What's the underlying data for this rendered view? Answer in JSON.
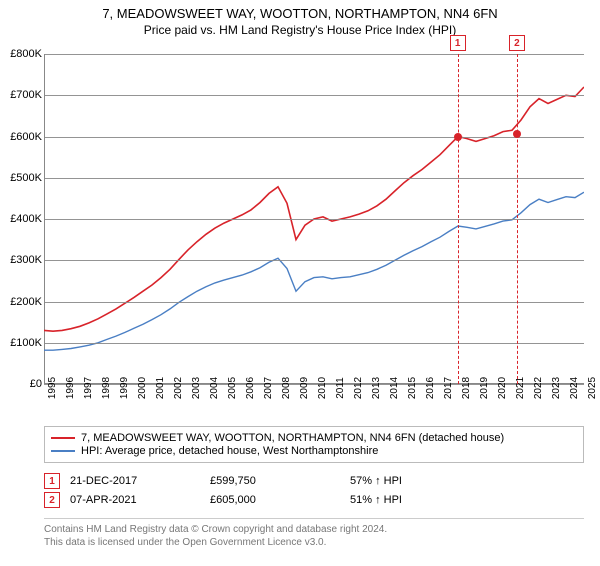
{
  "title": "7, MEADOWSWEET WAY, WOOTTON, NORTHAMPTON, NN4 6FN",
  "subtitle": "Price paid vs. HM Land Registry's House Price Index (HPI)",
  "chart": {
    "type": "line",
    "ylabel_format": "£{v}K",
    "ylim": [
      0,
      800000
    ],
    "ytick_step": 100000,
    "yticks": [
      "£0",
      "£100K",
      "£200K",
      "£300K",
      "£400K",
      "£500K",
      "£600K",
      "£700K",
      "£800K"
    ],
    "xlim": [
      1995,
      2025
    ],
    "xticks": [
      1995,
      1996,
      1997,
      1998,
      1999,
      2000,
      2001,
      2002,
      2003,
      2004,
      2005,
      2006,
      2007,
      2008,
      2009,
      2010,
      2011,
      2012,
      2013,
      2014,
      2015,
      2016,
      2017,
      2018,
      2019,
      2020,
      2021,
      2022,
      2023,
      2024,
      2025
    ],
    "grid_color": "#888888",
    "background_color": "#ffffff",
    "series": [
      {
        "name": "price_paid",
        "label": "7, MEADOWSWEET WAY, WOOTTON, NORTHAMPTON, NN4 6FN (detached house)",
        "color": "#d8232a",
        "line_width": 1.6,
        "x": [
          1995,
          1995.5,
          1996,
          1996.5,
          1997,
          1997.5,
          1998,
          1998.5,
          1999,
          1999.5,
          2000,
          2000.5,
          2001,
          2001.5,
          2002,
          2002.5,
          2003,
          2003.5,
          2004,
          2004.5,
          2005,
          2005.5,
          2006,
          2006.5,
          2007,
          2007.5,
          2008,
          2008.5,
          2009,
          2009.5,
          2010,
          2010.5,
          2011,
          2011.5,
          2012,
          2012.5,
          2013,
          2013.5,
          2014,
          2014.5,
          2015,
          2015.5,
          2016,
          2016.5,
          2017,
          2017.5,
          2018,
          2018.5,
          2019,
          2019.5,
          2020,
          2020.5,
          2021,
          2021.5,
          2022,
          2022.5,
          2023,
          2023.5,
          2024,
          2024.5,
          2025
        ],
        "y": [
          130000,
          128000,
          130000,
          134000,
          140000,
          148000,
          158000,
          170000,
          182000,
          196000,
          210000,
          225000,
          240000,
          258000,
          278000,
          302000,
          325000,
          345000,
          363000,
          378000,
          390000,
          400000,
          410000,
          422000,
          440000,
          462000,
          478000,
          438000,
          350000,
          385000,
          400000,
          405000,
          395000,
          400000,
          405000,
          412000,
          420000,
          432000,
          448000,
          468000,
          488000,
          505000,
          520000,
          538000,
          556000,
          578000,
          600000,
          595000,
          588000,
          595000,
          602000,
          612000,
          615000,
          640000,
          672000,
          692000,
          680000,
          690000,
          700000,
          697000,
          720000
        ]
      },
      {
        "name": "hpi",
        "label": "HPI: Average price, detached house, West Northamptonshire",
        "color": "#4a7fc4",
        "line_width": 1.4,
        "x": [
          1995,
          1995.5,
          1996,
          1996.5,
          1997,
          1997.5,
          1998,
          1998.5,
          1999,
          1999.5,
          2000,
          2000.5,
          2001,
          2001.5,
          2002,
          2002.5,
          2003,
          2003.5,
          2004,
          2004.5,
          2005,
          2005.5,
          2006,
          2006.5,
          2007,
          2007.5,
          2008,
          2008.5,
          2009,
          2009.5,
          2010,
          2010.5,
          2011,
          2011.5,
          2012,
          2012.5,
          2013,
          2013.5,
          2014,
          2014.5,
          2015,
          2015.5,
          2016,
          2016.5,
          2017,
          2017.5,
          2018,
          2018.5,
          2019,
          2019.5,
          2020,
          2020.5,
          2021,
          2021.5,
          2022,
          2022.5,
          2023,
          2023.5,
          2024,
          2024.5,
          2025
        ],
        "y": [
          82000,
          82000,
          84000,
          86000,
          90000,
          94000,
          100000,
          108000,
          116000,
          125000,
          135000,
          145000,
          156000,
          168000,
          182000,
          198000,
          212000,
          225000,
          236000,
          245000,
          252000,
          258000,
          264000,
          272000,
          282000,
          295000,
          305000,
          280000,
          225000,
          248000,
          258000,
          260000,
          255000,
          258000,
          260000,
          265000,
          270000,
          278000,
          288000,
          300000,
          312000,
          323000,
          333000,
          345000,
          356000,
          370000,
          383000,
          380000,
          376000,
          382000,
          388000,
          395000,
          398000,
          415000,
          435000,
          448000,
          440000,
          447000,
          454000,
          452000,
          465000
        ]
      }
    ],
    "sale_markers": [
      {
        "n": "1",
        "x_year": 2017.98,
        "y_value": 599750
      },
      {
        "n": "2",
        "x_year": 2021.27,
        "y_value": 605000
      }
    ],
    "marker_border_color": "#d8232a",
    "marker_fill_color": "#d8232a",
    "marker_dot_radius": 4
  },
  "legend": {
    "items": [
      {
        "color": "#d8232a",
        "label": "7, MEADOWSWEET WAY, WOOTTON, NORTHAMPTON, NN4 6FN (detached house)"
      },
      {
        "color": "#4a7fc4",
        "label": "HPI: Average price, detached house, West Northamptonshire"
      }
    ]
  },
  "sales_table": {
    "rows": [
      {
        "n": "1",
        "date": "21-DEC-2017",
        "price": "£599,750",
        "delta": "57% ↑ HPI"
      },
      {
        "n": "2",
        "date": "07-APR-2021",
        "price": "£605,000",
        "delta": "51% ↑ HPI"
      }
    ]
  },
  "footer": {
    "line1": "Contains HM Land Registry data © Crown copyright and database right 2024.",
    "line2": "This data is licensed under the Open Government Licence v3.0."
  }
}
